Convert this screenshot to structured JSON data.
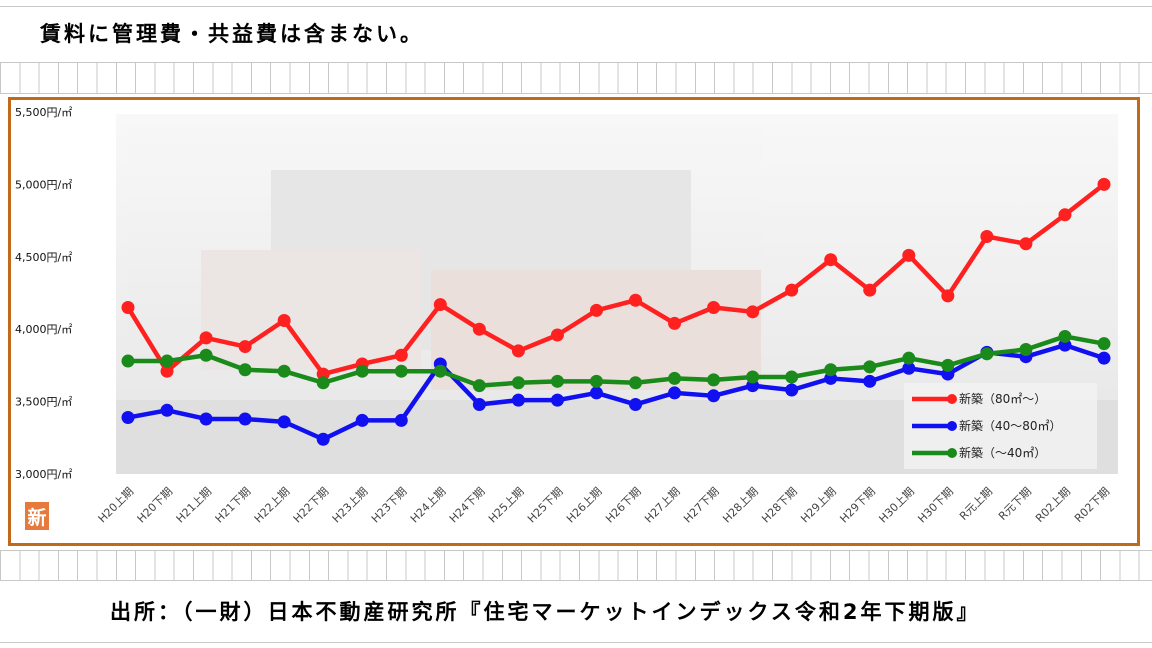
{
  "note": "賃料に管理費・共益費は含まない。",
  "source": "出所：（一財）日本不動産研究所『住宅マーケットインデックス令和2年下期版』",
  "badge": "新",
  "colors": {
    "frame": "#c06a1a",
    "series_large": "#ff2020",
    "series_medium": "#1010f0",
    "series_small": "#1a8a1a"
  },
  "chart_data": {
    "type": "line",
    "title": "",
    "xlabel": "",
    "ylabel": "",
    "ylim": [
      3000,
      5500
    ],
    "yticks": [
      "3,000円/㎡",
      "3,500円/㎡",
      "4,000円/㎡",
      "4,500円/㎡",
      "5,000円/㎡",
      "5,500円/㎡"
    ],
    "ytick_values": [
      3000,
      3500,
      4000,
      4500,
      5000,
      5500
    ],
    "categories": [
      "H20上期",
      "H20下期",
      "H21上期",
      "H21下期",
      "H22上期",
      "H22下期",
      "H23上期",
      "H23下期",
      "H24上期",
      "H24下期",
      "H25上期",
      "H25下期",
      "H26上期",
      "H26下期",
      "H27上期",
      "H27下期",
      "H28上期",
      "H28下期",
      "H29上期",
      "H29下期",
      "H30上期",
      "H30下期",
      "R元上期",
      "R元下期",
      "R02上期",
      "R02下期"
    ],
    "legend_position": "bottom-right",
    "series": [
      {
        "name": "新築（80㎡～）",
        "color": "#ff2020",
        "values": [
          4150,
          3710,
          3940,
          3880,
          4060,
          3690,
          3760,
          3820,
          4170,
          4000,
          3850,
          3960,
          4130,
          4200,
          4040,
          4150,
          4120,
          4270,
          4480,
          4270,
          4510,
          4230,
          4640,
          4590,
          4790,
          5000
        ]
      },
      {
        "name": "新築（40～80㎡）",
        "color": "#1010f0",
        "values": [
          3390,
          3440,
          3380,
          3380,
          3360,
          3240,
          3370,
          3370,
          3760,
          3480,
          3510,
          3510,
          3560,
          3480,
          3560,
          3540,
          3610,
          3580,
          3660,
          3640,
          3730,
          3690,
          3840,
          3810,
          3890,
          3800
        ]
      },
      {
        "name": "新築（～40㎡）",
        "color": "#1a8a1a",
        "values": [
          3780,
          3780,
          3820,
          3720,
          3710,
          3630,
          3710,
          3710,
          3710,
          3610,
          3630,
          3640,
          3640,
          3630,
          3660,
          3650,
          3670,
          3670,
          3720,
          3740,
          3800,
          3750,
          3830,
          3860,
          3950,
          3900
        ]
      }
    ]
  }
}
